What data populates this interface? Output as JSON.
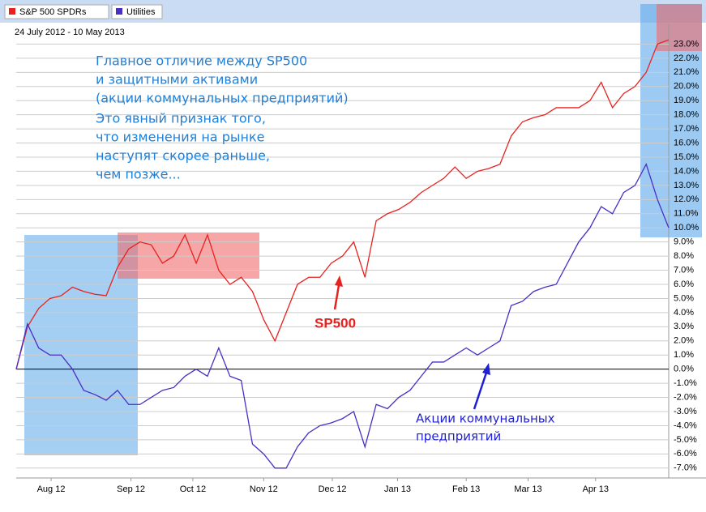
{
  "chart_data": {
    "type": "line",
    "subtitle": "24 July 2012 - 10 May 2013",
    "annotations": {
      "main": [
        "Главное отличие между SP500",
        "и защитными активами",
        "(акции коммунальных предприятий)",
        "Это явный признак того,",
        "что изменения на рынке",
        "наступят скорее раньше,",
        "чем позже..."
      ],
      "sp500": "SP500",
      "utilities": [
        "Акции коммунальных",
        "предприятий"
      ]
    },
    "series": [
      {
        "name": "S&P 500 SPDRs",
        "color": "#e8211f",
        "values": [
          0,
          3.0,
          4.3,
          5.0,
          5.2,
          5.8,
          5.5,
          5.3,
          5.2,
          7.2,
          8.5,
          9.0,
          8.8,
          7.5,
          8.0,
          9.5,
          7.5,
          9.5,
          7.0,
          6.0,
          6.5,
          5.5,
          3.5,
          2.0,
          4.0,
          6.0,
          6.5,
          6.5,
          7.5,
          8.0,
          9.0,
          6.5,
          10.5,
          11.0,
          11.3,
          11.8,
          12.5,
          13.0,
          13.5,
          14.3,
          13.5,
          14.0,
          14.2,
          14.5,
          16.5,
          17.5,
          17.8,
          18.0,
          18.5,
          18.5,
          18.5,
          19.0,
          20.3,
          18.5,
          19.5,
          20.0,
          21.0,
          23.0,
          23.3
        ]
      },
      {
        "name": "Utilities",
        "color": "#4a2fc4",
        "values": [
          0,
          3.2,
          1.5,
          1.0,
          1.0,
          0.0,
          -1.5,
          -1.8,
          -2.2,
          -1.5,
          -2.5,
          -2.5,
          -2.0,
          -1.5,
          -1.3,
          -0.5,
          0.0,
          -0.5,
          1.5,
          -0.5,
          -0.8,
          -5.3,
          -6.0,
          -7.0,
          -7.0,
          -5.5,
          -4.5,
          -4.0,
          -3.8,
          -3.5,
          -3.0,
          -5.5,
          -2.5,
          -2.8,
          -2.0,
          -1.5,
          -0.5,
          0.5,
          0.5,
          1.0,
          1.5,
          1.0,
          1.5,
          2.0,
          4.5,
          4.8,
          5.5,
          5.8,
          6.0,
          7.5,
          9.0,
          10.0,
          11.5,
          11.0,
          12.5,
          13.0,
          14.5,
          12.0,
          10.0
        ]
      }
    ],
    "xlim": [
      0,
      58
    ],
    "xticks": [
      {
        "value": 3.1,
        "label": "Aug 12"
      },
      {
        "value": 10.2,
        "label": "Sep 12"
      },
      {
        "value": 15.7,
        "label": "Oct 12"
      },
      {
        "value": 22,
        "label": "Nov 12"
      },
      {
        "value": 28.1,
        "label": "Dec 12"
      },
      {
        "value": 33.9,
        "label": "Jan 13"
      },
      {
        "value": 40,
        "label": "Feb 13"
      },
      {
        "value": 45.5,
        "label": "Mar 13"
      },
      {
        "value": 51.5,
        "label": "Apr 13"
      }
    ],
    "ylim": [
      -7.7,
      24.4
    ],
    "yticks": [
      {
        "value": -7,
        "label": "-7.0%"
      },
      {
        "value": -6,
        "label": "-6.0%"
      },
      {
        "value": -5,
        "label": "-5.0%"
      },
      {
        "value": -4,
        "label": "-4.0%"
      },
      {
        "value": -3,
        "label": "-3.0%"
      },
      {
        "value": -2,
        "label": "-2.0%"
      },
      {
        "value": -1,
        "label": "-1.0%"
      },
      {
        "value": 0,
        "label": "0.0%"
      },
      {
        "value": 1,
        "label": "1.0%"
      },
      {
        "value": 2,
        "label": "2.0%"
      },
      {
        "value": 3,
        "label": "3.0%"
      },
      {
        "value": 4,
        "label": "4.0%"
      },
      {
        "value": 5,
        "label": "5.0%"
      },
      {
        "value": 6,
        "label": "6.0%"
      },
      {
        "value": 7,
        "label": "7.0%"
      },
      {
        "value": 8,
        "label": "8.0%"
      },
      {
        "value": 9,
        "label": "9.0%"
      },
      {
        "value": 10,
        "label": "10.0%"
      },
      {
        "value": 11,
        "label": "11.0%"
      },
      {
        "value": 12,
        "label": "12.0%"
      },
      {
        "value": 13,
        "label": "13.0%"
      },
      {
        "value": 14,
        "label": "14.0%"
      },
      {
        "value": 15,
        "label": "15.0%"
      },
      {
        "value": 16,
        "label": "16.0%"
      },
      {
        "value": 17,
        "label": "17.0%"
      },
      {
        "value": 18,
        "label": "18.0%"
      },
      {
        "value": 19,
        "label": "19.0%"
      },
      {
        "value": 20,
        "label": "20.0%"
      },
      {
        "value": 21,
        "label": "21.0%"
      },
      {
        "value": 22,
        "label": "22.0%"
      },
      {
        "value": 23,
        "label": "23.0%"
      }
    ],
    "grid": true,
    "legend": "top-left"
  }
}
